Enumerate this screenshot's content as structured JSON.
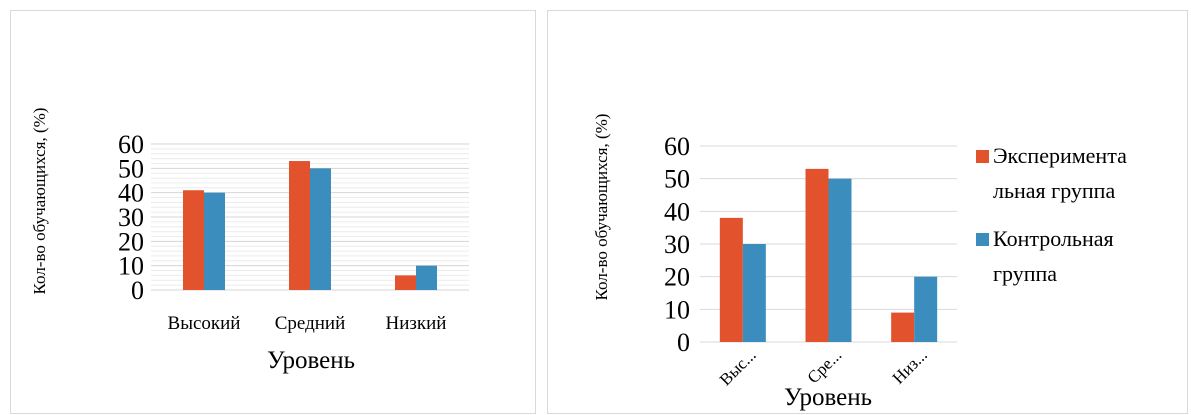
{
  "chart_data": [
    {
      "type": "bar",
      "categories": [
        "Высокий",
        "Средний",
        "Низкий"
      ],
      "series": [
        {
          "values": [
            41,
            53,
            6
          ],
          "color": "#e2532d"
        },
        {
          "values": [
            40,
            50,
            10
          ],
          "color": "#3a8dbd"
        }
      ],
      "xlabel": "Уровень",
      "ylabel": "Кол-во обучающихся, (%)",
      "ylim": [
        0,
        60
      ],
      "yticks": [
        "0",
        "10",
        "20",
        "30",
        "40",
        "50",
        "60"
      ],
      "grid": true,
      "grid_style": "dense horizontal gridlines",
      "legend": "none"
    },
    {
      "type": "bar",
      "categories": [
        "Выс...",
        "Сре...",
        "Низ..."
      ],
      "series": [
        {
          "name": "Экспериментальная группа",
          "values": [
            38,
            53,
            9
          ],
          "color": "#e2532d"
        },
        {
          "name": "Контрольная группа",
          "values": [
            30,
            50,
            20
          ],
          "color": "#3a8dbd"
        }
      ],
      "xlabel": "Уровень",
      "ylabel": "Кол-во обучающихся, (%)",
      "ylim": [
        0,
        60
      ],
      "yticks": [
        "0",
        "10",
        "20",
        "30",
        "40",
        "50",
        "60"
      ],
      "grid": true,
      "legend": "right",
      "legend_lines": [
        [
          "Эксперимента",
          "льная группа"
        ],
        [
          "Контрольная",
          "группа"
        ]
      ],
      "xtick_rotation": "diagonal"
    }
  ]
}
